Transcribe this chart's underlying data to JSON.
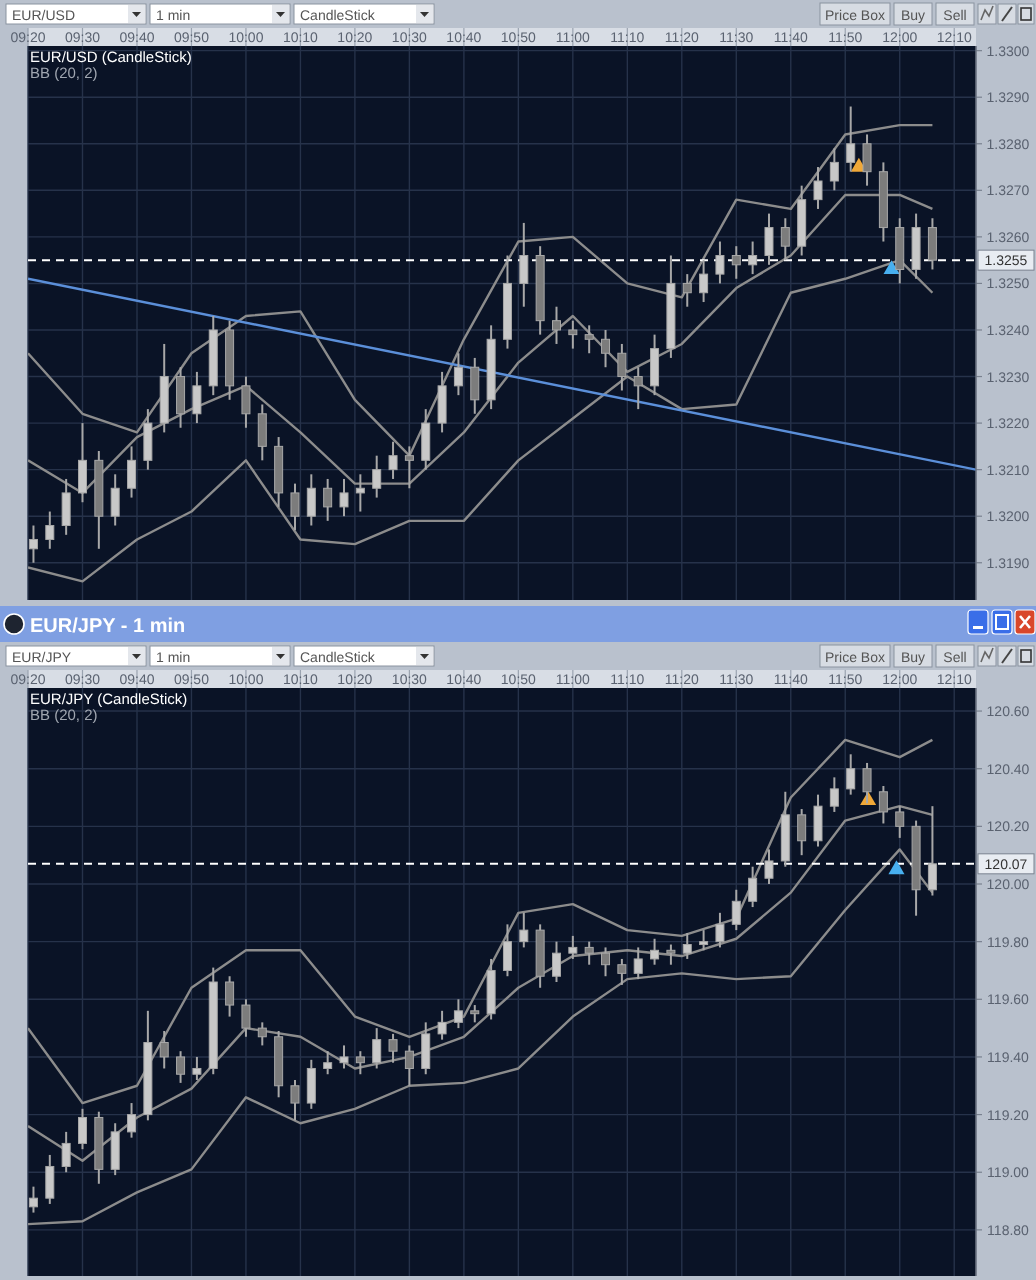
{
  "chart_data": [
    {
      "type": "candlestick",
      "title": "EUR/USD (CandleStick)",
      "subtitle": "BB (20, 2)",
      "annotations": [
        "EUR/USD",
        "1 min",
        "CandleStick",
        "Price Box",
        "Buy",
        "Sell"
      ],
      "grid": true,
      "xlim": [
        9.3333,
        12.2333
      ],
      "xticks": [
        {
          "value": 9.3333,
          "label": "09:20"
        },
        {
          "value": 9.5,
          "label": "09:30"
        },
        {
          "value": 9.6667,
          "label": "09:40"
        },
        {
          "value": 9.8333,
          "label": "09:50"
        },
        {
          "value": 10,
          "label": "10:00"
        },
        {
          "value": 10.1667,
          "label": "10:10"
        },
        {
          "value": 10.3333,
          "label": "10:20"
        },
        {
          "value": 10.5,
          "label": "10:30"
        },
        {
          "value": 10.6667,
          "label": "10:40"
        },
        {
          "value": 10.8333,
          "label": "10:50"
        },
        {
          "value": 11,
          "label": "11:00"
        },
        {
          "value": 11.1667,
          "label": "11:10"
        },
        {
          "value": 11.3333,
          "label": "11:20"
        },
        {
          "value": 11.5,
          "label": "11:30"
        },
        {
          "value": 11.6667,
          "label": "11:40"
        },
        {
          "value": 11.8333,
          "label": "11:50"
        },
        {
          "value": 12,
          "label": "12:00"
        },
        {
          "value": 12.1667,
          "label": "12:10"
        }
      ],
      "ylim": [
        1.3182,
        1.3301
      ],
      "yticks": [
        {
          "value": 1.319,
          "label": "1.3190"
        },
        {
          "value": 1.32,
          "label": "1.3200"
        },
        {
          "value": 1.321,
          "label": "1.3210"
        },
        {
          "value": 1.322,
          "label": "1.3220"
        },
        {
          "value": 1.323,
          "label": "1.3230"
        },
        {
          "value": 1.324,
          "label": "1.3240"
        },
        {
          "value": 1.325,
          "label": "1.3250"
        },
        {
          "value": 1.326,
          "label": "1.3260"
        },
        {
          "value": 1.327,
          "label": "1.3270"
        },
        {
          "value": 1.328,
          "label": "1.3280"
        },
        {
          "value": 1.329,
          "label": "1.3290"
        },
        {
          "value": 1.33,
          "label": "1.3300"
        }
      ],
      "ref_lines": [
        {
          "axis": "y",
          "value": 1.3255,
          "label": "1.3255",
          "line_style": "dashed",
          "color": "#ffffff"
        }
      ],
      "x": [
        9.35,
        9.4,
        9.45,
        9.5,
        9.55,
        9.6,
        9.65,
        9.7,
        9.75,
        9.8,
        9.85,
        9.9,
        9.95,
        10,
        10.05,
        10.1,
        10.15,
        10.2,
        10.25,
        10.3,
        10.35,
        10.4,
        10.45,
        10.5,
        10.55,
        10.6,
        10.65,
        10.7,
        10.75,
        10.8,
        10.85,
        10.9,
        10.95,
        11,
        11.05,
        11.1,
        11.15,
        11.2,
        11.25,
        11.3,
        11.35,
        11.4,
        11.45,
        11.5,
        11.55,
        11.6,
        11.65,
        11.7,
        11.75,
        11.8,
        11.85,
        11.9,
        11.95,
        12,
        12.05,
        12.1
      ],
      "ohlc": [
        [
          1.3193,
          1.3198,
          1.319,
          1.3195
        ],
        [
          1.3195,
          1.3201,
          1.3193,
          1.3198
        ],
        [
          1.3198,
          1.3208,
          1.3196,
          1.3205
        ],
        [
          1.3205,
          1.322,
          1.3203,
          1.3212
        ],
        [
          1.3212,
          1.3214,
          1.3193,
          1.32
        ],
        [
          1.32,
          1.3209,
          1.3198,
          1.3206
        ],
        [
          1.3206,
          1.3215,
          1.3204,
          1.3212
        ],
        [
          1.3212,
          1.3223,
          1.321,
          1.322
        ],
        [
          1.322,
          1.3237,
          1.3218,
          1.323
        ],
        [
          1.323,
          1.3232,
          1.3219,
          1.3222
        ],
        [
          1.3222,
          1.3231,
          1.322,
          1.3228
        ],
        [
          1.3228,
          1.3243,
          1.3226,
          1.324
        ],
        [
          1.324,
          1.3242,
          1.3225,
          1.3228
        ],
        [
          1.3228,
          1.323,
          1.3219,
          1.3222
        ],
        [
          1.3222,
          1.3224,
          1.3212,
          1.3215
        ],
        [
          1.3215,
          1.3217,
          1.3202,
          1.3205
        ],
        [
          1.3205,
          1.3207,
          1.3197,
          1.32
        ],
        [
          1.32,
          1.3209,
          1.3198,
          1.3206
        ],
        [
          1.3206,
          1.3208,
          1.3199,
          1.3202
        ],
        [
          1.3202,
          1.3208,
          1.32,
          1.3205
        ],
        [
          1.3205,
          1.3209,
          1.3201,
          1.3206
        ],
        [
          1.3206,
          1.3213,
          1.3204,
          1.321
        ],
        [
          1.321,
          1.3216,
          1.3208,
          1.3213
        ],
        [
          1.3213,
          1.3215,
          1.3206,
          1.3212
        ],
        [
          1.3212,
          1.3223,
          1.321,
          1.322
        ],
        [
          1.322,
          1.3231,
          1.3218,
          1.3228
        ],
        [
          1.3228,
          1.3235,
          1.3226,
          1.3232
        ],
        [
          1.3232,
          1.3234,
          1.3222,
          1.3225
        ],
        [
          1.3225,
          1.3241,
          1.3223,
          1.3238
        ],
        [
          1.3238,
          1.3256,
          1.3236,
          1.325
        ],
        [
          1.325,
          1.3263,
          1.3245,
          1.3256
        ],
        [
          1.3256,
          1.3258,
          1.3239,
          1.3242
        ],
        [
          1.3242,
          1.3245,
          1.3237,
          1.324
        ],
        [
          1.324,
          1.3242,
          1.3236,
          1.3239
        ],
        [
          1.3239,
          1.3241,
          1.3235,
          1.3238
        ],
        [
          1.3238,
          1.324,
          1.3232,
          1.3235
        ],
        [
          1.3235,
          1.3237,
          1.3227,
          1.323
        ],
        [
          1.323,
          1.3232,
          1.3223,
          1.3228
        ],
        [
          1.3228,
          1.3239,
          1.3226,
          1.3236
        ],
        [
          1.3236,
          1.3256,
          1.3234,
          1.325
        ],
        [
          1.325,
          1.3252,
          1.3245,
          1.3248
        ],
        [
          1.3248,
          1.3255,
          1.3246,
          1.3252
        ],
        [
          1.3252,
          1.3259,
          1.325,
          1.3256
        ],
        [
          1.3256,
          1.3258,
          1.3251,
          1.3254
        ],
        [
          1.3254,
          1.3259,
          1.3252,
          1.3256
        ],
        [
          1.3256,
          1.3265,
          1.3254,
          1.3262
        ],
        [
          1.3262,
          1.3264,
          1.3255,
          1.3258
        ],
        [
          1.3258,
          1.3271,
          1.3256,
          1.3268
        ],
        [
          1.3268,
          1.3275,
          1.3266,
          1.3272
        ],
        [
          1.3272,
          1.3279,
          1.327,
          1.3276
        ],
        [
          1.3276,
          1.3288,
          1.3274,
          1.328
        ],
        [
          1.328,
          1.3282,
          1.3271,
          1.3274
        ],
        [
          1.3274,
          1.3276,
          1.3259,
          1.3262
        ],
        [
          1.3262,
          1.3264,
          1.325,
          1.3253
        ],
        [
          1.3253,
          1.3265,
          1.3251,
          1.3262
        ],
        [
          1.3262,
          1.3264,
          1.3253,
          1.3255
        ]
      ],
      "series": [
        {
          "type": "line",
          "color": "#8c8c8c",
          "x": [
            9.3333,
            9.5,
            9.6667,
            9.8333,
            10,
            10.1667,
            10.3333,
            10.5,
            10.6667,
            10.8333,
            11,
            11.1667,
            11.3333,
            11.5,
            11.6667,
            11.8333,
            12,
            12.1
          ],
          "values": [
            1.3235,
            1.3222,
            1.3218,
            1.3235,
            1.3243,
            1.3244,
            1.3225,
            1.3213,
            1.3238,
            1.3259,
            1.326,
            1.325,
            1.3247,
            1.3268,
            1.3266,
            1.3282,
            1.3284,
            1.3284
          ]
        },
        {
          "type": "line",
          "color": "#8c8c8c",
          "x": [
            9.3333,
            9.5,
            9.6667,
            9.8333,
            10,
            10.1667,
            10.3333,
            10.5,
            10.6667,
            10.8333,
            11,
            11.1667,
            11.3333,
            11.5,
            11.6667,
            11.8333,
            12,
            12.1
          ],
          "values": [
            1.3212,
            1.3205,
            1.3217,
            1.3223,
            1.3228,
            1.3218,
            1.3207,
            1.3207,
            1.3218,
            1.3233,
            1.3243,
            1.3231,
            1.3237,
            1.3249,
            1.3256,
            1.3269,
            1.3269,
            1.3266
          ]
        },
        {
          "type": "line",
          "color": "#8c8c8c",
          "x": [
            9.3333,
            9.5,
            9.6667,
            9.8333,
            10,
            10.1667,
            10.3333,
            10.5,
            10.6667,
            10.8333,
            11,
            11.1667,
            11.3333,
            11.5,
            11.6667,
            11.8333,
            12,
            12.1
          ],
          "values": [
            1.3189,
            1.3186,
            1.3195,
            1.3201,
            1.3212,
            1.3195,
            1.3194,
            1.3199,
            1.3199,
            1.3212,
            1.3221,
            1.323,
            1.3223,
            1.3224,
            1.3248,
            1.3251,
            1.3255,
            1.3248
          ]
        },
        {
          "type": "line",
          "color": "#5b8fd9",
          "x": [
            9.3333,
            12.2333
          ],
          "values": [
            1.3251,
            1.321
          ]
        },
        {
          "type": "scatter",
          "marker": "triangle",
          "color": "#f0a838",
          "x": [
            11.875
          ],
          "values": [
            1.3275
          ]
        },
        {
          "type": "scatter",
          "marker": "triangle",
          "color": "#48b0f0",
          "x": [
            11.975
          ],
          "values": [
            1.3253
          ]
        }
      ]
    },
    {
      "type": "candlestick",
      "title": "EUR/JPY (CandleStick)",
      "subtitle": "BB (20, 2)",
      "annotations": [
        "EUR/JPY",
        "1 min",
        "CandleStick",
        "Price Box",
        "Buy",
        "Sell",
        "EUR/JPY - 1 min"
      ],
      "grid": true,
      "xlim": [
        9.3333,
        12.2333
      ],
      "xticks": [
        {
          "value": 9.3333,
          "label": "09:20"
        },
        {
          "value": 9.5,
          "label": "09:30"
        },
        {
          "value": 9.6667,
          "label": "09:40"
        },
        {
          "value": 9.8333,
          "label": "09:50"
        },
        {
          "value": 10,
          "label": "10:00"
        },
        {
          "value": 10.1667,
          "label": "10:10"
        },
        {
          "value": 10.3333,
          "label": "10:20"
        },
        {
          "value": 10.5,
          "label": "10:30"
        },
        {
          "value": 10.6667,
          "label": "10:40"
        },
        {
          "value": 10.8333,
          "label": "10:50"
        },
        {
          "value": 11,
          "label": "11:00"
        },
        {
          "value": 11.1667,
          "label": "11:10"
        },
        {
          "value": 11.3333,
          "label": "11:20"
        },
        {
          "value": 11.5,
          "label": "11:30"
        },
        {
          "value": 11.6667,
          "label": "11:40"
        },
        {
          "value": 11.8333,
          "label": "11:50"
        },
        {
          "value": 12,
          "label": "12:00"
        },
        {
          "value": 12.1667,
          "label": "12:10"
        }
      ],
      "ylim": [
        118.64,
        120.68
      ],
      "yticks": [
        {
          "value": 118.8,
          "label": "118.80"
        },
        {
          "value": 119,
          "label": "119.00"
        },
        {
          "value": 119.2,
          "label": "119.20"
        },
        {
          "value": 119.4,
          "label": "119.40"
        },
        {
          "value": 119.6,
          "label": "119.60"
        },
        {
          "value": 119.8,
          "label": "119.80"
        },
        {
          "value": 120,
          "label": "120.00"
        },
        {
          "value": 120.2,
          "label": "120.20"
        },
        {
          "value": 120.4,
          "label": "120.40"
        },
        {
          "value": 120.6,
          "label": "120.60"
        }
      ],
      "ref_lines": [
        {
          "axis": "y",
          "value": 120.07,
          "label": "120.07",
          "line_style": "dashed",
          "color": "#ffffff"
        }
      ],
      "x": [
        9.35,
        9.4,
        9.45,
        9.5,
        9.55,
        9.6,
        9.65,
        9.7,
        9.75,
        9.8,
        9.85,
        9.9,
        9.95,
        10,
        10.05,
        10.1,
        10.15,
        10.2,
        10.25,
        10.3,
        10.35,
        10.4,
        10.45,
        10.5,
        10.55,
        10.6,
        10.65,
        10.7,
        10.75,
        10.8,
        10.85,
        10.9,
        10.95,
        11,
        11.05,
        11.1,
        11.15,
        11.2,
        11.25,
        11.3,
        11.35,
        11.4,
        11.45,
        11.5,
        11.55,
        11.6,
        11.65,
        11.7,
        11.75,
        11.8,
        11.85,
        11.9,
        11.95,
        12,
        12.05,
        12.1
      ],
      "ohlc": [
        [
          118.88,
          118.95,
          118.86,
          118.91
        ],
        [
          118.91,
          119.06,
          118.89,
          119.02
        ],
        [
          119.02,
          119.14,
          119,
          119.1
        ],
        [
          119.1,
          119.22,
          119.08,
          119.19
        ],
        [
          119.19,
          119.21,
          118.96,
          119.01
        ],
        [
          119.01,
          119.17,
          118.99,
          119.14
        ],
        [
          119.14,
          119.24,
          119.12,
          119.2
        ],
        [
          119.2,
          119.56,
          119.18,
          119.45
        ],
        [
          119.45,
          119.49,
          119.36,
          119.4
        ],
        [
          119.4,
          119.42,
          119.31,
          119.34
        ],
        [
          119.34,
          119.4,
          119.32,
          119.36
        ],
        [
          119.36,
          119.71,
          119.34,
          119.66
        ],
        [
          119.66,
          119.68,
          119.54,
          119.58
        ],
        [
          119.58,
          119.6,
          119.47,
          119.5
        ],
        [
          119.5,
          119.52,
          119.44,
          119.47
        ],
        [
          119.47,
          119.49,
          119.26,
          119.3
        ],
        [
          119.3,
          119.32,
          119.18,
          119.24
        ],
        [
          119.24,
          119.39,
          119.22,
          119.36
        ],
        [
          119.36,
          119.42,
          119.34,
          119.38
        ],
        [
          119.38,
          119.44,
          119.36,
          119.4
        ],
        [
          119.4,
          119.42,
          119.34,
          119.38
        ],
        [
          119.38,
          119.5,
          119.36,
          119.46
        ],
        [
          119.46,
          119.48,
          119.38,
          119.42
        ],
        [
          119.42,
          119.44,
          119.3,
          119.36
        ],
        [
          119.36,
          119.52,
          119.34,
          119.48
        ],
        [
          119.48,
          119.56,
          119.46,
          119.52
        ],
        [
          119.52,
          119.6,
          119.5,
          119.56
        ],
        [
          119.56,
          119.58,
          119.52,
          119.55
        ],
        [
          119.55,
          119.74,
          119.53,
          119.7
        ],
        [
          119.7,
          119.86,
          119.68,
          119.8
        ],
        [
          119.8,
          119.9,
          119.78,
          119.84
        ],
        [
          119.84,
          119.86,
          119.64,
          119.68
        ],
        [
          119.68,
          119.8,
          119.66,
          119.76
        ],
        [
          119.76,
          119.82,
          119.74,
          119.78
        ],
        [
          119.78,
          119.8,
          119.72,
          119.76
        ],
        [
          119.76,
          119.78,
          119.68,
          119.72
        ],
        [
          119.72,
          119.74,
          119.65,
          119.69
        ],
        [
          119.69,
          119.78,
          119.67,
          119.74
        ],
        [
          119.74,
          119.81,
          119.72,
          119.77
        ],
        [
          119.77,
          119.79,
          119.72,
          119.76
        ],
        [
          119.76,
          119.83,
          119.74,
          119.79
        ],
        [
          119.79,
          119.84,
          119.77,
          119.8
        ],
        [
          119.8,
          119.9,
          119.78,
          119.86
        ],
        [
          119.86,
          119.98,
          119.84,
          119.94
        ],
        [
          119.94,
          120.06,
          119.92,
          120.02
        ],
        [
          120.02,
          120.12,
          120,
          120.08
        ],
        [
          120.08,
          120.32,
          120.06,
          120.24
        ],
        [
          120.24,
          120.26,
          120.1,
          120.15
        ],
        [
          120.15,
          120.31,
          120.13,
          120.27
        ],
        [
          120.27,
          120.37,
          120.25,
          120.33
        ],
        [
          120.33,
          120.45,
          120.31,
          120.4
        ],
        [
          120.4,
          120.42,
          120.28,
          120.32
        ],
        [
          120.32,
          120.34,
          120.21,
          120.25
        ],
        [
          120.25,
          120.27,
          120.16,
          120.2
        ],
        [
          120.2,
          120.22,
          119.89,
          119.98
        ],
        [
          119.98,
          120.27,
          119.96,
          120.07
        ]
      ],
      "series": [
        {
          "type": "line",
          "color": "#8c8c8c",
          "x": [
            9.3333,
            9.5,
            9.6667,
            9.8333,
            10,
            10.1667,
            10.3333,
            10.5,
            10.6667,
            10.8333,
            11,
            11.1667,
            11.3333,
            11.5,
            11.6667,
            11.8333,
            12,
            12.1
          ],
          "values": [
            119.5,
            119.24,
            119.3,
            119.64,
            119.77,
            119.77,
            119.54,
            119.47,
            119.54,
            119.9,
            119.93,
            119.84,
            119.82,
            119.88,
            120.3,
            120.5,
            120.44,
            120.5
          ]
        },
        {
          "type": "line",
          "color": "#8c8c8c",
          "x": [
            9.3333,
            9.5,
            9.6667,
            9.8333,
            10,
            10.1667,
            10.3333,
            10.5,
            10.6667,
            10.8333,
            11,
            11.1667,
            11.3333,
            11.5,
            11.6667,
            11.8333,
            12,
            12.1
          ],
          "values": [
            119.16,
            119.04,
            119.19,
            119.29,
            119.5,
            119.47,
            119.36,
            119.4,
            119.47,
            119.64,
            119.75,
            119.77,
            119.75,
            119.81,
            119.97,
            120.22,
            120.27,
            120.24
          ]
        },
        {
          "type": "line",
          "color": "#8c8c8c",
          "x": [
            9.3333,
            9.5,
            9.6667,
            9.8333,
            10,
            10.1667,
            10.3333,
            10.5,
            10.6667,
            10.8333,
            11,
            11.1667,
            11.3333,
            11.5,
            11.6667,
            11.8333,
            12,
            12.1
          ],
          "values": [
            118.82,
            118.83,
            118.93,
            119.01,
            119.26,
            119.17,
            119.22,
            119.3,
            119.31,
            119.36,
            119.54,
            119.67,
            119.69,
            119.67,
            119.68,
            119.91,
            120.12,
            119.97
          ]
        },
        {
          "type": "scatter",
          "marker": "triangle",
          "color": "#f0a838",
          "x": [
            11.9033
          ],
          "values": [
            120.29
          ]
        },
        {
          "type": "scatter",
          "marker": "triangle",
          "color": "#48b0f0",
          "x": [
            11.99
          ],
          "values": [
            120.05
          ]
        }
      ]
    }
  ]
}
